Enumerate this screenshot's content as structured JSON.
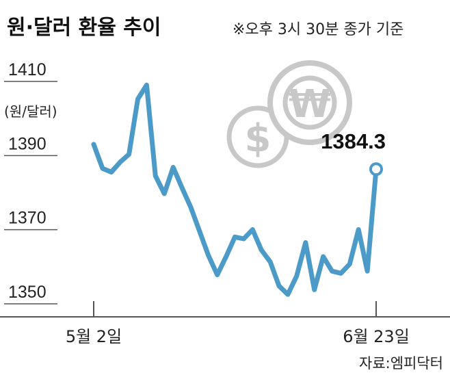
{
  "header": {
    "title": "원·달러 환율 추이",
    "note": "※오후 3시 30분 종가 기준"
  },
  "icons": {
    "dollar": "dollar-coin-icon",
    "won": "won-coin-icon",
    "dollar_symbol": "$",
    "won_symbol": "₩"
  },
  "colors": {
    "line": "#4b9ac7",
    "coin": "#c8c8c8",
    "axis": "#555555"
  },
  "source": "자료:엠피닥터",
  "chart_data": {
    "type": "line",
    "unit_label": "(원/달러)",
    "y_ticks": [
      "1410",
      "1390",
      "1370",
      "1350"
    ],
    "y_tick_values": [
      1410,
      1390,
      1370,
      1350
    ],
    "ylim": [
      1346,
      1416
    ],
    "x_tick_labels": [
      "5월 2일",
      "6월 23일"
    ],
    "x_tick_indices": [
      0,
      37
    ],
    "grid": false,
    "series": [
      {
        "values": [
          1391.0,
          1384.5,
          1383.5,
          1386.2,
          1388.3,
          1403.2,
          1407.0,
          1382.5,
          1377.7,
          1384.8,
          1379.3,
          1374.0,
          1367.5,
          1361.0,
          1355.8,
          1360.7,
          1366.0,
          1365.5,
          1368.0,
          1362.5,
          1359.3,
          1352.8,
          1350.5,
          1355.5,
          1364.5,
          1351.8,
          1360.7,
          1356.8,
          1356.2,
          1358.7,
          1368.0,
          1356.8,
          1384.3
        ]
      }
    ],
    "x_index": [
      0,
      1,
      2,
      3,
      4,
      5,
      6,
      7,
      8,
      9,
      10,
      11,
      12,
      13,
      14,
      15,
      16,
      17,
      18,
      19,
      20,
      21,
      22,
      23,
      24,
      25,
      26,
      27,
      28,
      29,
      30,
      31,
      32
    ],
    "last_value_label": "1384.3"
  }
}
